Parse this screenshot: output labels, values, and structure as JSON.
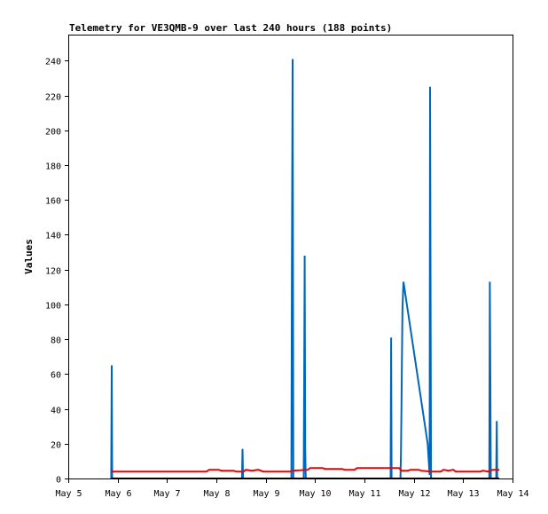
{
  "chart_data": {
    "type": "line",
    "title": "Telemetry for VE3QMB-9 over last 240 hours (188 points)",
    "xlabel": "",
    "ylabel": "Values",
    "xlim": [
      0,
      9
    ],
    "ylim": [
      0,
      255
    ],
    "xticks": [
      {
        "x": 0,
        "label": "May 5"
      },
      {
        "x": 1,
        "label": "May 6"
      },
      {
        "x": 2,
        "label": "May 7"
      },
      {
        "x": 3,
        "label": "May 8"
      },
      {
        "x": 4,
        "label": "May 9"
      },
      {
        "x": 5,
        "label": "May 10"
      },
      {
        "x": 6,
        "label": "May 11"
      },
      {
        "x": 7,
        "label": "May 12"
      },
      {
        "x": 8,
        "label": "May 13"
      },
      {
        "x": 9,
        "label": "May 14"
      }
    ],
    "yticks": [
      0,
      20,
      40,
      60,
      80,
      100,
      120,
      140,
      160,
      180,
      200,
      220,
      240
    ],
    "grid": false,
    "legend": "none",
    "series": [
      {
        "color": "#0066bb",
        "points": [
          [
            0.87,
            0
          ],
          [
            0.88,
            65
          ],
          [
            0.89,
            0
          ],
          [
            3.52,
            0
          ],
          [
            3.53,
            17
          ],
          [
            3.54,
            0
          ],
          [
            4.52,
            0
          ],
          [
            4.53,
            122
          ],
          [
            4.545,
            241
          ],
          [
            4.56,
            0
          ],
          [
            4.77,
            0
          ],
          [
            4.78,
            65
          ],
          [
            4.79,
            128
          ],
          [
            4.8,
            17
          ],
          [
            4.81,
            0
          ],
          [
            6.53,
            0
          ],
          [
            6.54,
            81
          ],
          [
            6.55,
            0
          ],
          [
            6.73,
            0
          ],
          [
            6.74,
            15
          ],
          [
            6.75,
            43
          ],
          [
            6.76,
            70
          ],
          [
            6.77,
            98
          ],
          [
            6.79,
            113
          ],
          [
            7.28,
            20
          ],
          [
            7.32,
            2
          ],
          [
            7.33,
            225
          ],
          [
            7.35,
            0
          ],
          [
            8.53,
            0
          ],
          [
            8.54,
            113
          ],
          [
            8.55,
            57
          ],
          [
            8.56,
            0
          ],
          [
            8.67,
            0
          ],
          [
            8.68,
            33
          ],
          [
            8.69,
            0
          ]
        ]
      },
      {
        "color": "#ee0000",
        "points": [
          [
            0.87,
            5
          ],
          [
            0.9,
            4
          ],
          [
            2.8,
            4
          ],
          [
            2.85,
            5
          ],
          [
            3.05,
            5
          ],
          [
            3.1,
            4.5
          ],
          [
            3.35,
            4.5
          ],
          [
            3.4,
            4
          ],
          [
            3.55,
            4
          ],
          [
            3.6,
            5
          ],
          [
            3.72,
            4.5
          ],
          [
            3.85,
            5
          ],
          [
            3.95,
            4
          ],
          [
            4.5,
            4
          ],
          [
            4.55,
            4.5
          ],
          [
            4.85,
            5
          ],
          [
            4.9,
            6
          ],
          [
            5.15,
            6
          ],
          [
            5.2,
            5.5
          ],
          [
            5.55,
            5.5
          ],
          [
            5.6,
            5
          ],
          [
            5.8,
            5
          ],
          [
            5.85,
            6
          ],
          [
            6.7,
            6
          ],
          [
            6.75,
            4.5
          ],
          [
            6.88,
            4.5
          ],
          [
            6.93,
            5
          ],
          [
            7.1,
            5
          ],
          [
            7.15,
            4.5
          ],
          [
            7.35,
            4
          ],
          [
            7.55,
            4
          ],
          [
            7.6,
            5
          ],
          [
            7.7,
            4.5
          ],
          [
            7.8,
            5
          ],
          [
            7.85,
            4
          ],
          [
            8.35,
            4
          ],
          [
            8.4,
            4.5
          ],
          [
            8.5,
            4
          ],
          [
            8.6,
            5
          ],
          [
            8.73,
            5
          ]
        ]
      },
      {
        "color": "#000000",
        "points": [
          [
            0.87,
            0
          ],
          [
            8.73,
            0
          ]
        ]
      }
    ]
  }
}
